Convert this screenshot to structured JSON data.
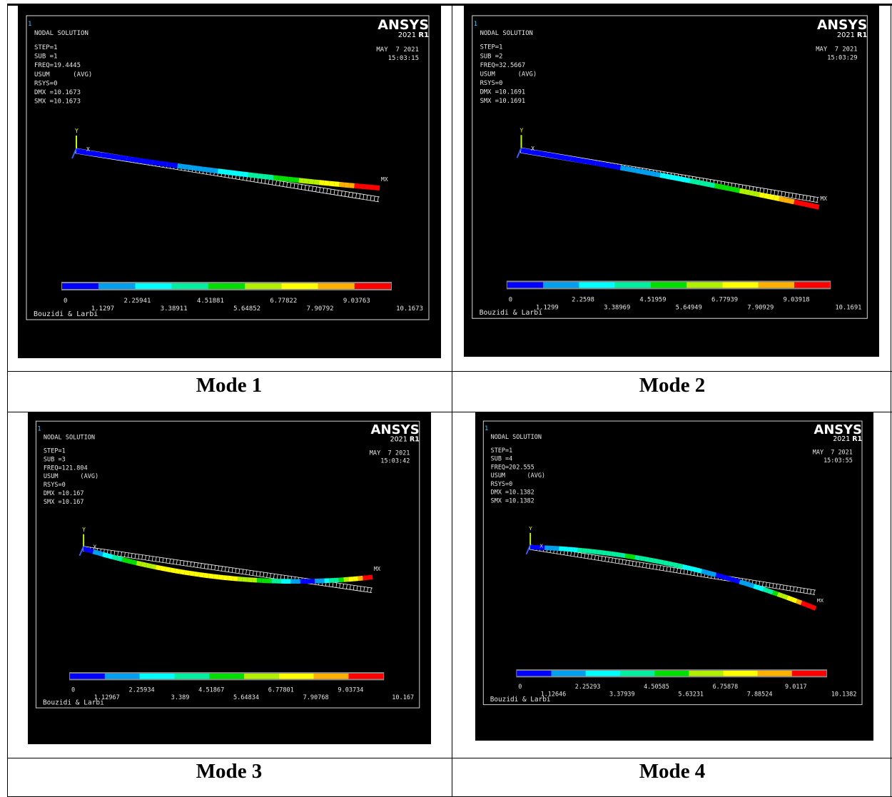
{
  "panels": [
    {
      "corner": "1",
      "title": "NODAL SOLUTION",
      "info": [
        "STEP=1",
        "SUB =1",
        "FREQ=19.4445",
        "USUM      (AVG)",
        "RSYS=0",
        "DMX =10.1673",
        "SMX =10.1673"
      ],
      "brand": "ANSYS",
      "version": "2021",
      "release": "R1",
      "date": "MAY  7 2021",
      "time": "15:03:15",
      "axis_y": "Y",
      "axis_x": "X",
      "max_label": "MX",
      "legend": [
        "0",
        "1.1297",
        "2.25941",
        "3.38911",
        "4.51881",
        "5.64852",
        "6.77822",
        "7.90792",
        "9.03763",
        "10.1673"
      ],
      "footer": "Bouzidi & Larbi",
      "caption": "Mode 1"
    },
    {
      "corner": "1",
      "title": "NODAL SOLUTION",
      "info": [
        "STEP=1",
        "SUB =2",
        "FREQ=32.5667",
        "USUM      (AVG)",
        "RSYS=0",
        "DMX =10.1691",
        "SMX =10.1691"
      ],
      "brand": "ANSYS",
      "version": "2021",
      "release": "R1",
      "date": "MAY  7 2021",
      "time": "15:03:29",
      "axis_y": "Y",
      "axis_x": "X",
      "max_label": "MX",
      "legend": [
        "0",
        "1.1299",
        "2.2598",
        "3.38969",
        "4.51959",
        "5.64949",
        "6.77939",
        "7.90929",
        "9.03918",
        "10.1691"
      ],
      "footer": "Bouzidi & Larbi",
      "caption": "Mode 2"
    },
    {
      "corner": "1",
      "title": "NODAL SOLUTION",
      "info": [
        "STEP=1",
        "SUB =3",
        "FREQ=121.804",
        "USUM      (AVG)",
        "RSYS=0",
        "DMX =10.167",
        "SMX =10.167"
      ],
      "brand": "ANSYS",
      "version": "2021",
      "release": "R1",
      "date": "MAY  7 2021",
      "time": "15:03:42",
      "axis_y": "Y",
      "axis_x": "X",
      "max_label": "MX",
      "legend": [
        "0",
        "1.12967",
        "2.25934",
        "3.389",
        "4.51867",
        "5.64834",
        "6.77801",
        "7.90768",
        "9.03734",
        "10.167"
      ],
      "footer": "Bouzidi & Larbi",
      "caption": "Mode 3"
    },
    {
      "corner": "1",
      "title": "NODAL SOLUTION",
      "info": [
        "STEP=1",
        "SUB =4",
        "FREQ=202.555",
        "USUM      (AVG)",
        "RSYS=0",
        "DMX =10.1382",
        "SMX =10.1382"
      ],
      "brand": "ANSYS",
      "version": "2021",
      "release": "R1",
      "date": "MAY  7 2021",
      "time": "15:03:55",
      "axis_y": "Y",
      "axis_x": "X",
      "max_label": "MX",
      "legend": [
        "0",
        "1.12646",
        "2.25293",
        "3.37939",
        "4.50585",
        "5.63231",
        "6.75878",
        "7.88524",
        "9.0117",
        "10.1382"
      ],
      "footer": "Bouzidi & Larbi",
      "caption": "Mode 4"
    }
  ]
}
